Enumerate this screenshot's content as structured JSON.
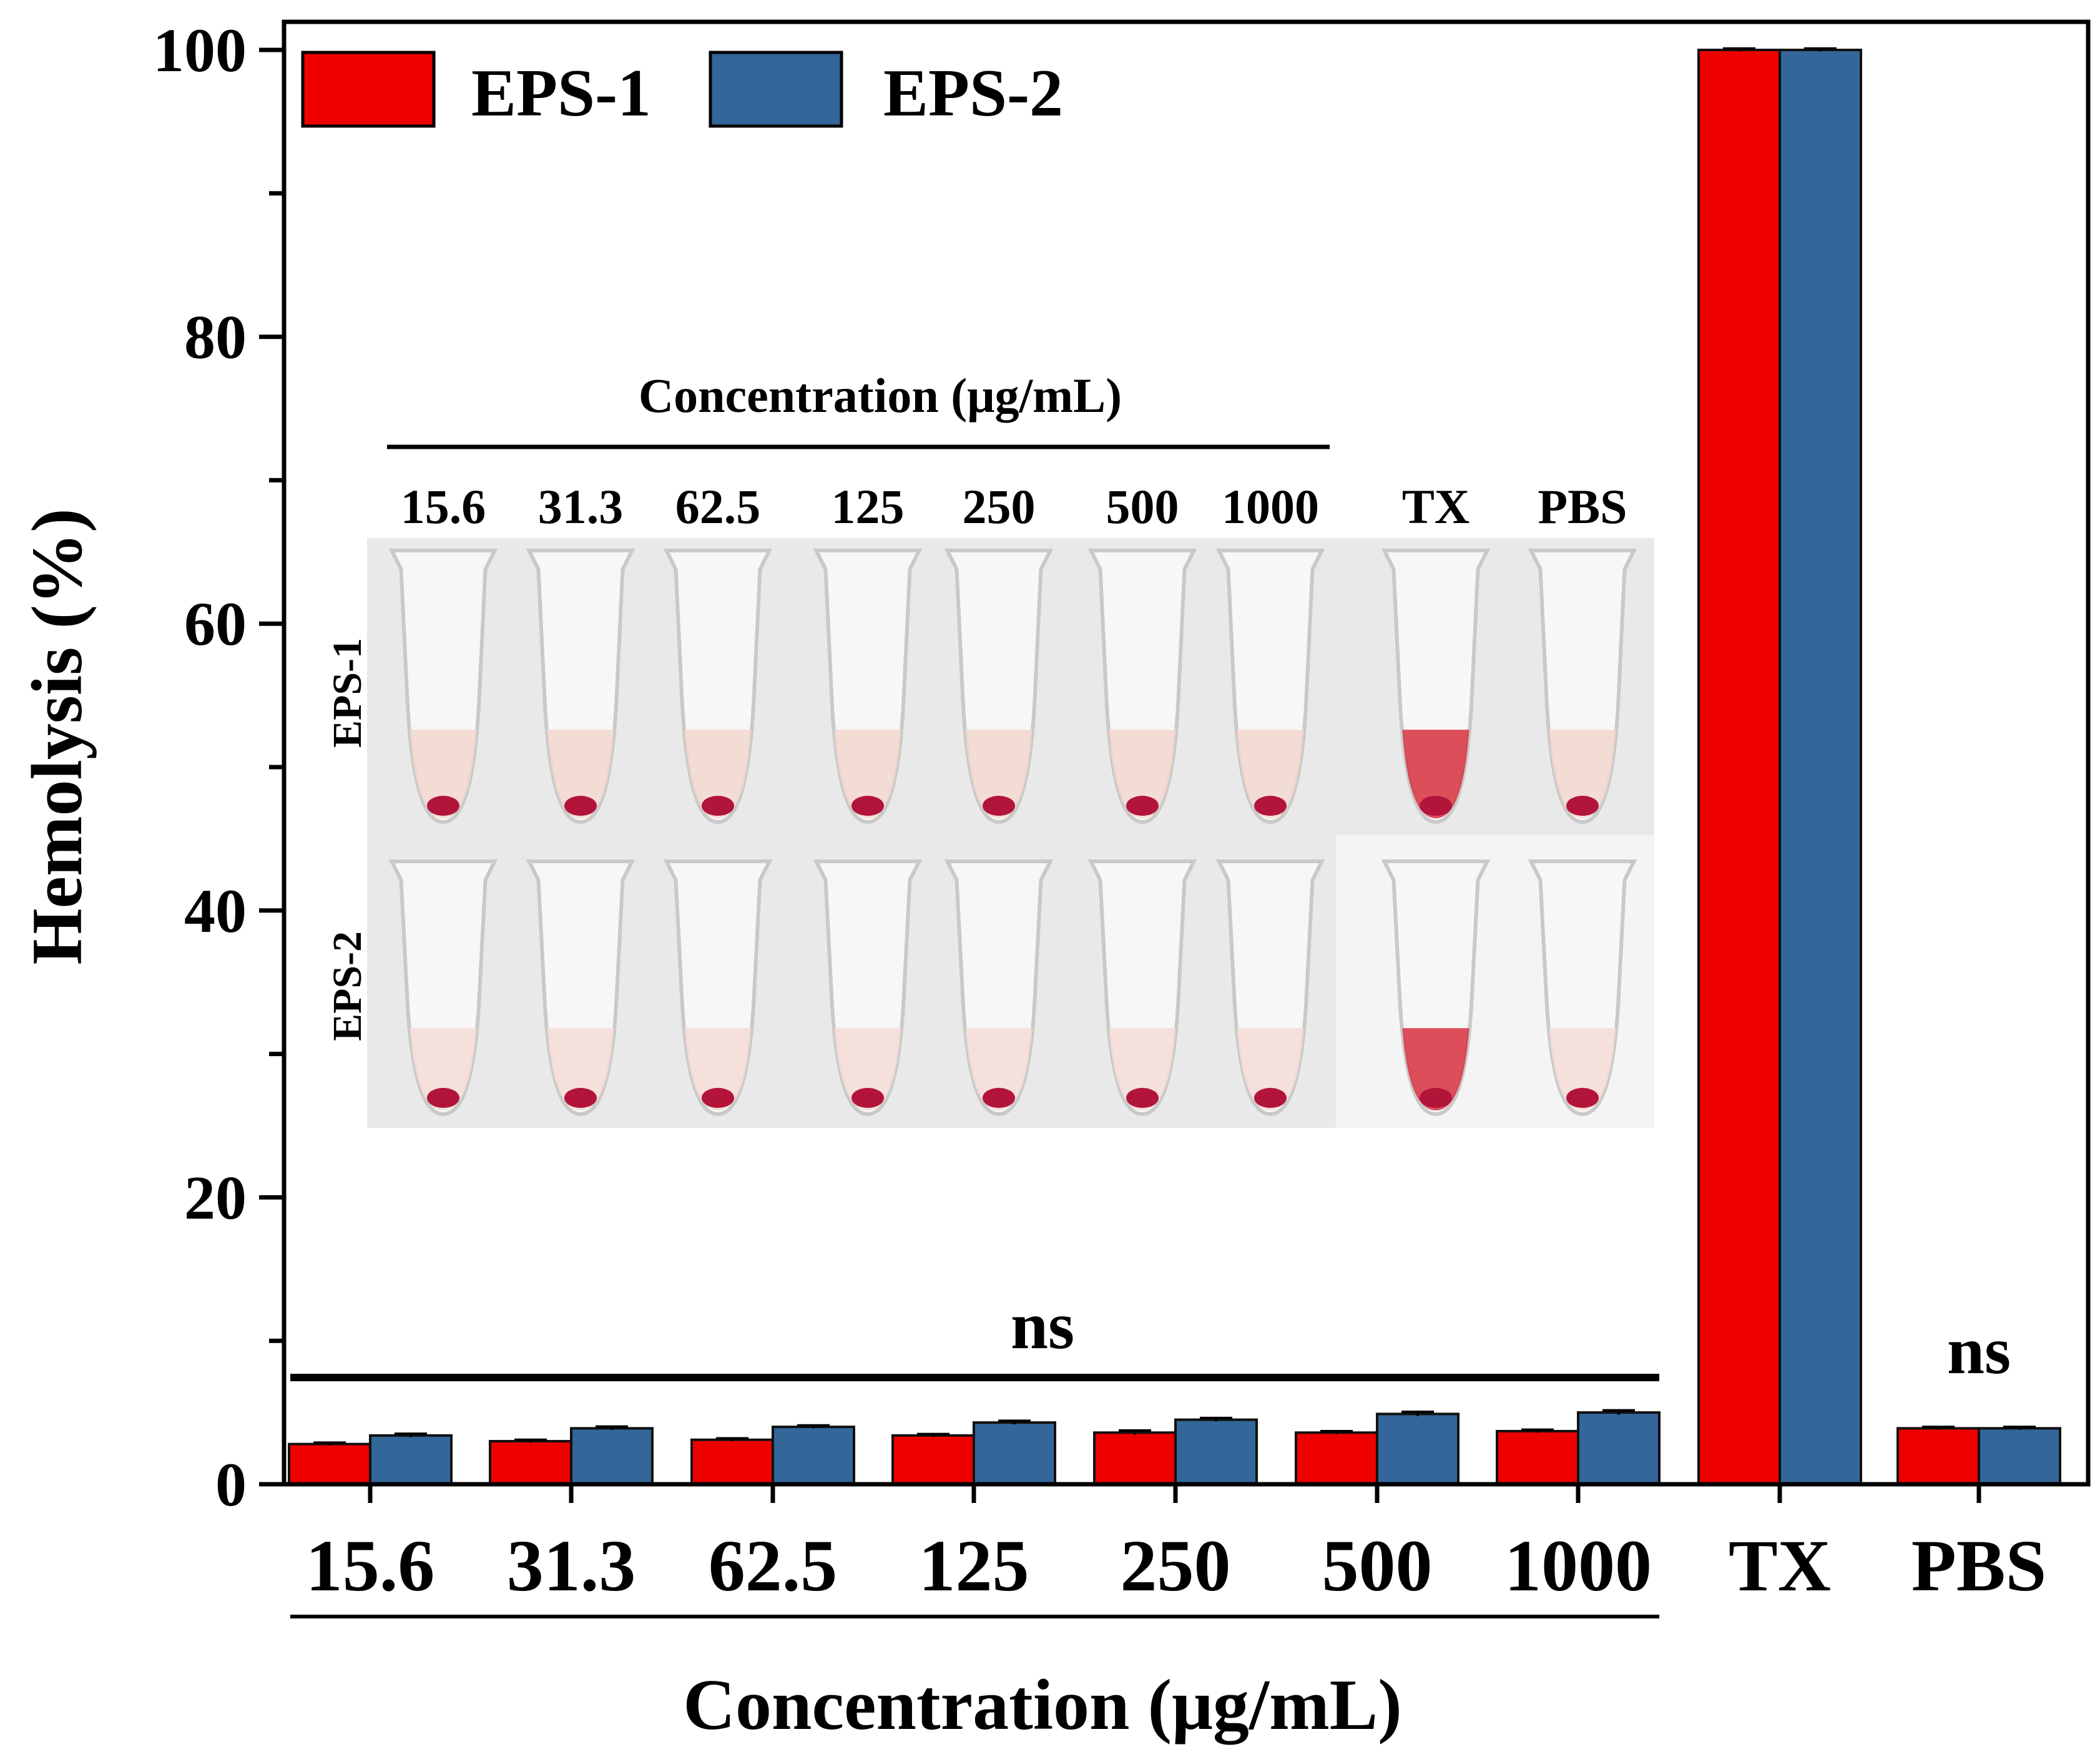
{
  "chart_data": {
    "type": "bar",
    "title": "",
    "xlabel": "Concentration (μg/mL)",
    "ylabel": "Hemolysis (%)",
    "ylim": [
      0,
      105
    ],
    "yticks": [
      "0",
      "20",
      "40",
      "60",
      "80",
      "100"
    ],
    "categories": [
      "15.6",
      "31.3",
      "62.5",
      "125",
      "250",
      "500",
      "1000",
      "TX",
      "PBS"
    ],
    "bracketed_categories_label": "Concentration (μg/mL)",
    "series": [
      {
        "name": "EPS-1",
        "color": "#ee0000",
        "values": [
          2.8,
          3.0,
          3.1,
          3.4,
          3.6,
          3.6,
          3.7,
          100,
          3.9
        ],
        "errors": [
          0.1,
          0.1,
          0.1,
          0.1,
          0.15,
          0.1,
          0.1,
          0.1,
          0.1
        ]
      },
      {
        "name": "EPS-2",
        "color": "#336699",
        "values": [
          3.4,
          3.9,
          4.0,
          4.3,
          4.5,
          4.9,
          5.0,
          100,
          3.9
        ],
        "errors": [
          0.12,
          0.12,
          0.1,
          0.12,
          0.12,
          0.15,
          0.15,
          0.1,
          0.1
        ]
      }
    ],
    "annotations": [
      {
        "text": "ns",
        "spans": [
          "15.6",
          "1000"
        ]
      },
      {
        "text": "ns",
        "spans": [
          "PBS"
        ]
      }
    ],
    "legend": "top-left",
    "inset": {
      "title": "Concentration (μg/mL)",
      "labels": [
        "15.6",
        "31.3",
        "62.5",
        "125",
        "250",
        "500",
        "1000",
        "TX",
        "PBS"
      ],
      "rows": [
        "EPS-1",
        "EPS-2"
      ]
    }
  }
}
